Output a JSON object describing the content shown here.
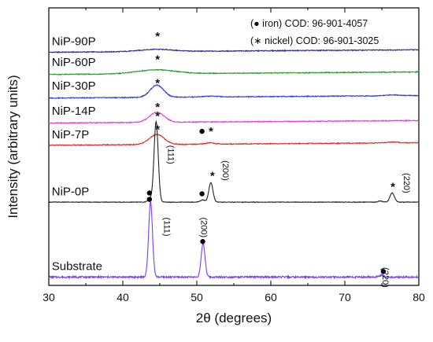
{
  "chart_data": {
    "type": "line",
    "xlabel": "2θ (degrees)",
    "ylabel": "Intensity (arbitrary units)",
    "xlim": [
      30,
      80
    ],
    "xticks": [
      30,
      40,
      50,
      60,
      70,
      80
    ],
    "y_ticks_shown": false,
    "legend_position": "top-right",
    "legend": [
      {
        "text": "(● iron) COD: 96-901-4057"
      },
      {
        "text": "(∗ nickel) COD: 96-901-3025"
      }
    ],
    "series": [
      {
        "name": "NiP-90P",
        "color": "#2b2b8f",
        "offset": 0.84,
        "noise": 0.003,
        "slope": 0.009,
        "peaks": [
          {
            "x": 44.5,
            "h": 0.008,
            "w": 2.2
          }
        ]
      },
      {
        "name": "NiP-60P",
        "color": "#2a9a2a",
        "offset": 0.76,
        "noise": 0.003,
        "slope": 0.009,
        "peaks": [
          {
            "x": 44.5,
            "h": 0.014,
            "w": 2.6
          }
        ]
      },
      {
        "name": "NiP-30P",
        "color": "#2e3ddd",
        "offset": 0.675,
        "noise": 0.003,
        "slope": 0.009,
        "peaks": [
          {
            "x": 44.6,
            "h": 0.044,
            "w": 0.9
          },
          {
            "x": 52.0,
            "h": 0.003,
            "w": 1.0
          },
          {
            "x": 76.5,
            "h": 0.003,
            "w": 1.0
          }
        ]
      },
      {
        "name": "NiP-14P",
        "color": "#e33be0",
        "offset": 0.585,
        "noise": 0.003,
        "slope": 0.009,
        "peaks": [
          {
            "x": 44.6,
            "h": 0.036,
            "w": 1.0
          }
        ]
      },
      {
        "name": "NiP-7P",
        "color": "#e02b2b",
        "offset": 0.505,
        "noise": 0.003,
        "slope": 0.009,
        "peaks": [
          {
            "x": 44.6,
            "h": 0.036,
            "w": 1.0
          },
          {
            "x": 51.8,
            "h": 0.005,
            "w": 0.6
          },
          {
            "x": 76.5,
            "h": 0.003,
            "w": 0.8
          }
        ]
      },
      {
        "name": "NiP-0P",
        "color": "#222222",
        "offset": 0.3,
        "noise": 0.002,
        "slope": 0,
        "peaks": [
          {
            "x": 43.7,
            "h": 0.012,
            "w": 0.3
          },
          {
            "x": 44.5,
            "h": 0.29,
            "w": 0.28
          },
          {
            "x": 50.8,
            "h": 0.008,
            "w": 0.3
          },
          {
            "x": 51.9,
            "h": 0.07,
            "w": 0.28
          },
          {
            "x": 74.8,
            "h": 0.004,
            "w": 0.3
          },
          {
            "x": 76.4,
            "h": 0.033,
            "w": 0.3
          }
        ]
      },
      {
        "name": "Substrate",
        "color": "#7a3df0",
        "offset": 0.03,
        "noise": 0.006,
        "slope": 0,
        "peaks": [
          {
            "x": 43.75,
            "h": 0.27,
            "w": 0.26
          },
          {
            "x": 50.85,
            "h": 0.12,
            "w": 0.26
          },
          {
            "x": 74.9,
            "h": 0.006,
            "w": 0.3
          }
        ]
      }
    ],
    "markers": [
      {
        "type": "star",
        "x": 44.7,
        "y": 0.898
      },
      {
        "type": "star",
        "x": 44.7,
        "y": 0.815
      },
      {
        "type": "star",
        "x": 44.7,
        "y": 0.73
      },
      {
        "type": "star",
        "x": 44.7,
        "y": 0.643
      },
      {
        "type": "star",
        "x": 44.7,
        "y": 0.562
      },
      {
        "type": "dot",
        "x": 50.7,
        "y": 0.555
      },
      {
        "type": "star",
        "x": 51.9,
        "y": 0.555
      },
      {
        "type": "star",
        "x": 44.7,
        "y": 0.61
      },
      {
        "type": "dot",
        "x": 43.6,
        "y": 0.333
      },
      {
        "type": "star",
        "x": 52.1,
        "y": 0.395
      },
      {
        "type": "dot",
        "x": 50.7,
        "y": 0.33
      },
      {
        "type": "star",
        "x": 76.5,
        "y": 0.355
      },
      {
        "type": "dot",
        "x": 43.6,
        "y": 0.31
      },
      {
        "type": "dot",
        "x": 50.8,
        "y": 0.158
      },
      {
        "type": "dot",
        "x": 75.2,
        "y": 0.05
      }
    ],
    "peak_labels": [
      {
        "text": "(111)",
        "x": 46.1,
        "y": 0.505
      },
      {
        "text": "(200)",
        "x": 53.5,
        "y": 0.45
      },
      {
        "text": "(220)",
        "x": 78.0,
        "y": 0.405
      },
      {
        "text": "(111)",
        "x": 45.6,
        "y": 0.245
      },
      {
        "text": "(200)",
        "x": 50.6,
        "y": 0.245
      },
      {
        "text": "(220)",
        "x": 75.1,
        "y": 0.065
      }
    ],
    "sample_labels": [
      {
        "text": "NiP-90P",
        "x": 30.4,
        "y": 0.865
      },
      {
        "text": "NiP-60P",
        "x": 30.4,
        "y": 0.79
      },
      {
        "text": "NiP-30P",
        "x": 30.4,
        "y": 0.705
      },
      {
        "text": "NiP-14P",
        "x": 30.4,
        "y": 0.615
      },
      {
        "text": "NiP-7P",
        "x": 30.4,
        "y": 0.53
      },
      {
        "text": "NiP-0P",
        "x": 30.4,
        "y": 0.325
      },
      {
        "text": "Substrate",
        "x": 30.4,
        "y": 0.055
      }
    ]
  }
}
